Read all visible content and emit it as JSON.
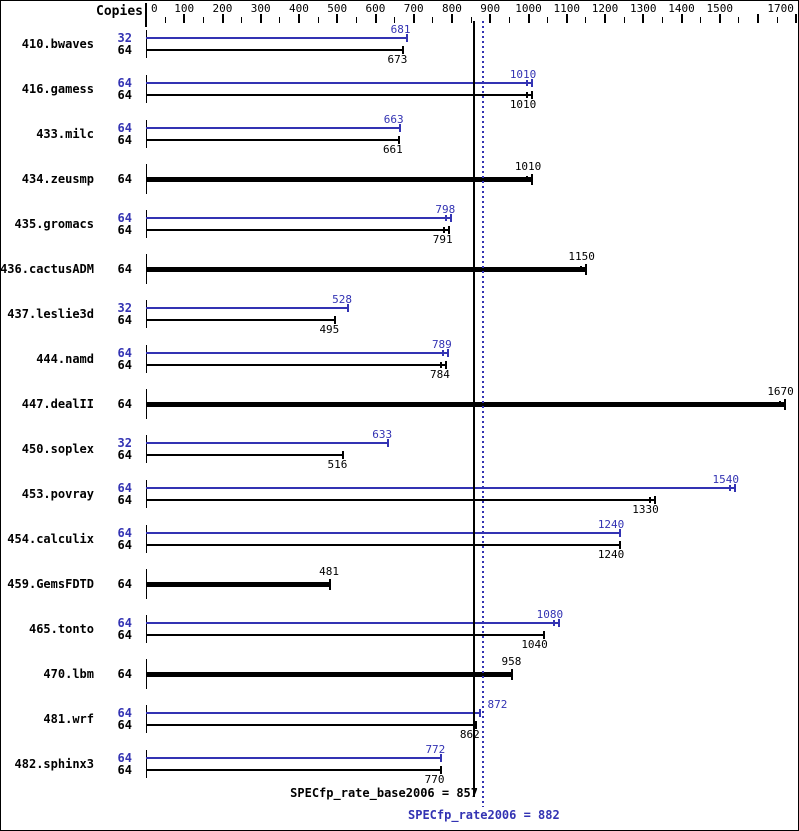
{
  "chart_data": {
    "type": "bar",
    "orientation": "horizontal",
    "copies_header": "Copies",
    "axis": {
      "min": 0,
      "max": 1700,
      "minor_step": 50,
      "major_step": 100,
      "labeled_ticks": [
        0,
        100,
        200,
        300,
        400,
        500,
        600,
        700,
        800,
        900,
        1000,
        1100,
        1200,
        1300,
        1400,
        1500,
        1700
      ]
    },
    "colors": {
      "peak": "#3333b3",
      "base": "#000000",
      "accent_text": "#2a2aa8"
    },
    "reference_lines": [
      {
        "name": "base",
        "label": "SPECfp_rate_base2006 = 857",
        "value": 857,
        "style": "solid",
        "color": "#000000"
      },
      {
        "name": "peak",
        "label": "SPECfp_rate2006 = 882",
        "value": 882,
        "style": "dotted",
        "color": "#3333b3"
      }
    ],
    "benchmarks": [
      {
        "name": "410.bwaves",
        "bars": [
          {
            "copies": 32,
            "value": 681,
            "series": "peak"
          },
          {
            "copies": 64,
            "value": 673,
            "series": "base"
          }
        ]
      },
      {
        "name": "416.gamess",
        "bars": [
          {
            "copies": 64,
            "value": 1010,
            "series": "peak",
            "runs2": true
          },
          {
            "copies": 64,
            "value": 1010,
            "series": "base",
            "runs2": true
          }
        ]
      },
      {
        "name": "433.milc",
        "bars": [
          {
            "copies": 64,
            "value": 663,
            "series": "peak"
          },
          {
            "copies": 64,
            "value": 661,
            "series": "base"
          }
        ]
      },
      {
        "name": "434.zeusmp",
        "bars": [
          {
            "copies": 64,
            "value": 1010,
            "series": "base",
            "thick": true,
            "runs2": true
          }
        ]
      },
      {
        "name": "435.gromacs",
        "bars": [
          {
            "copies": 64,
            "value": 798,
            "series": "peak",
            "runs2": true
          },
          {
            "copies": 64,
            "value": 791,
            "series": "base",
            "runs2": true
          }
        ]
      },
      {
        "name": "436.cactusADM",
        "bars": [
          {
            "copies": 64,
            "value": 1150,
            "series": "base",
            "thick": true,
            "runs2": true
          }
        ]
      },
      {
        "name": "437.leslie3d",
        "bars": [
          {
            "copies": 32,
            "value": 528,
            "series": "peak"
          },
          {
            "copies": 64,
            "value": 495,
            "series": "base"
          }
        ]
      },
      {
        "name": "444.namd",
        "bars": [
          {
            "copies": 64,
            "value": 789,
            "series": "peak",
            "runs2": true
          },
          {
            "copies": 64,
            "value": 784,
            "series": "base",
            "runs2": true
          }
        ]
      },
      {
        "name": "447.dealII",
        "bars": [
          {
            "copies": 64,
            "value": 1670,
            "series": "base",
            "thick": true,
            "runs2": true
          }
        ]
      },
      {
        "name": "450.soplex",
        "bars": [
          {
            "copies": 32,
            "value": 633,
            "series": "peak"
          },
          {
            "copies": 64,
            "value": 516,
            "series": "base"
          }
        ]
      },
      {
        "name": "453.povray",
        "bars": [
          {
            "copies": 64,
            "value": 1540,
            "series": "peak",
            "runs2": true
          },
          {
            "copies": 64,
            "value": 1330,
            "series": "base",
            "runs2": true
          }
        ]
      },
      {
        "name": "454.calculix",
        "bars": [
          {
            "copies": 64,
            "value": 1240,
            "series": "peak"
          },
          {
            "copies": 64,
            "value": 1240,
            "series": "base"
          }
        ]
      },
      {
        "name": "459.GemsFDTD",
        "bars": [
          {
            "copies": 64,
            "value": 481,
            "series": "base",
            "thick": true
          }
        ]
      },
      {
        "name": "465.tonto",
        "bars": [
          {
            "copies": 64,
            "value": 1080,
            "series": "peak",
            "runs2": true
          },
          {
            "copies": 64,
            "value": 1040,
            "series": "base"
          }
        ]
      },
      {
        "name": "470.lbm",
        "bars": [
          {
            "copies": 64,
            "value": 958,
            "series": "base",
            "thick": true
          }
        ]
      },
      {
        "name": "481.wrf",
        "bars": [
          {
            "copies": 64,
            "value": 872,
            "series": "peak",
            "label_align": "left"
          },
          {
            "copies": 64,
            "value": 862,
            "series": "base"
          }
        ]
      },
      {
        "name": "482.sphinx3",
        "bars": [
          {
            "copies": 64,
            "value": 772,
            "series": "peak"
          },
          {
            "copies": 64,
            "value": 770,
            "series": "base"
          }
        ]
      }
    ]
  }
}
